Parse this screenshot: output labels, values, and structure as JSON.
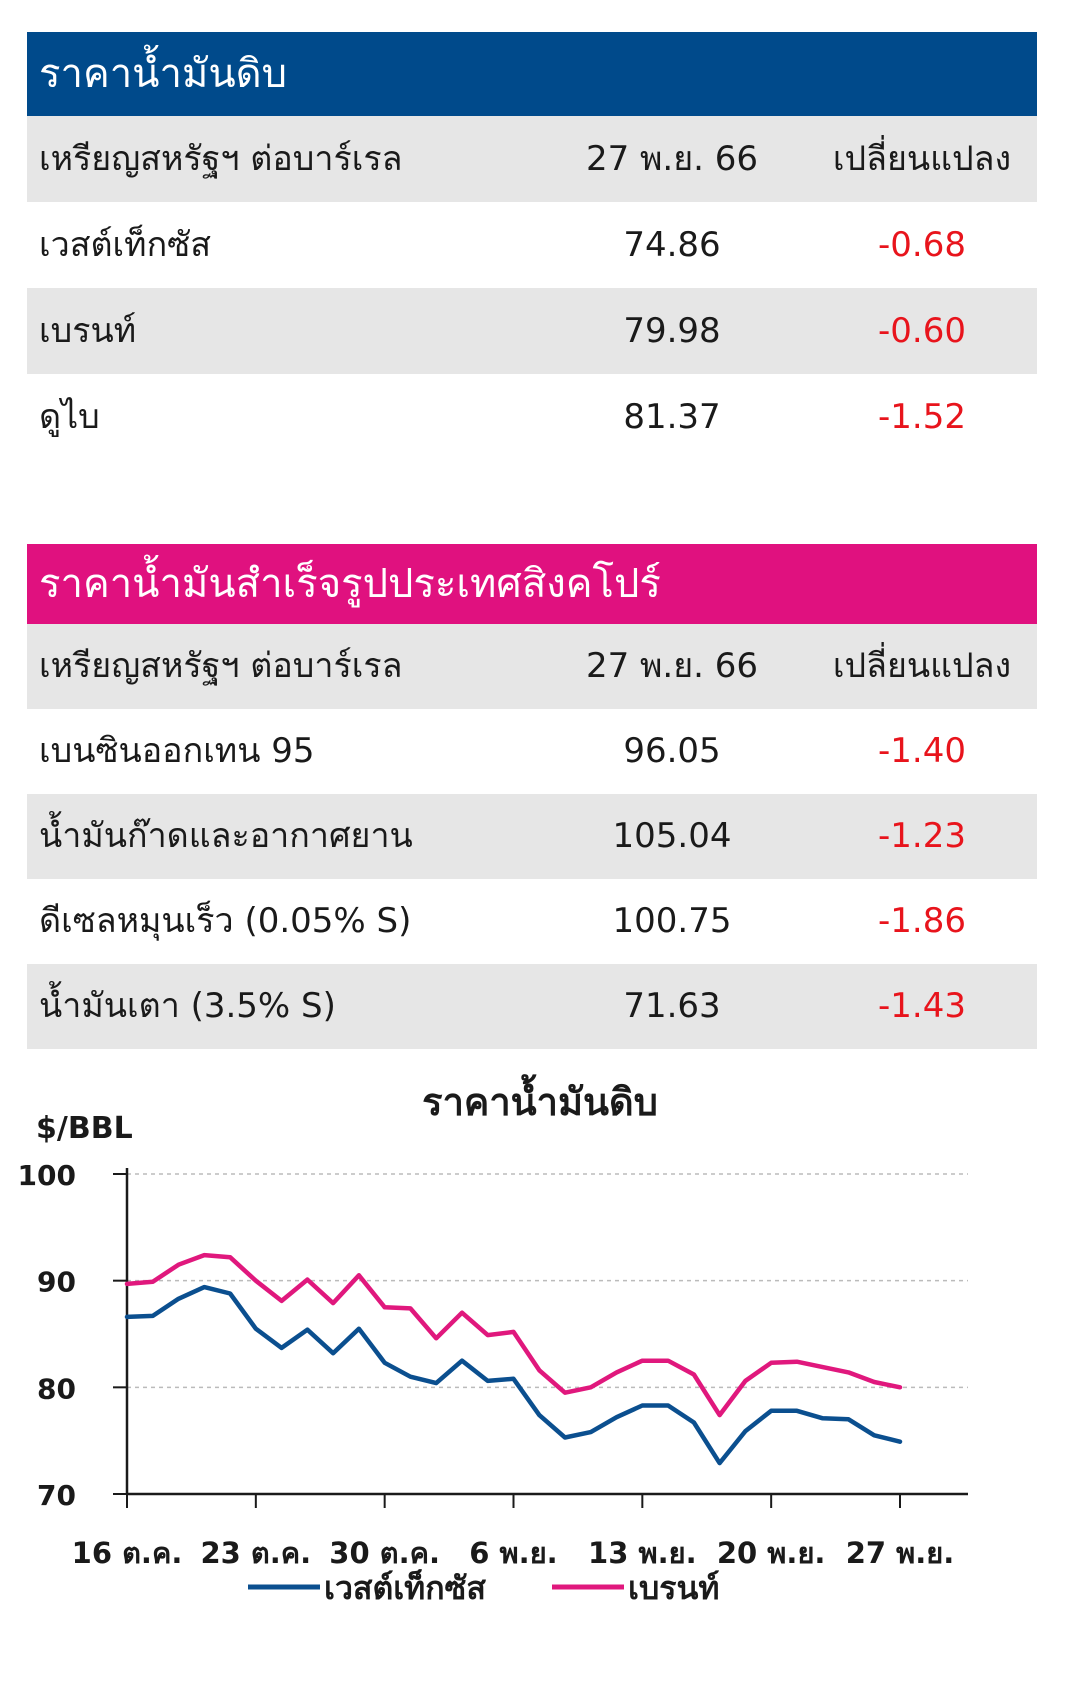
{
  "crude_table": {
    "title": "ราคาน้ำมันดิบ",
    "header": {
      "unit": "เหรียญสหรัฐฯ ต่อบาร์เรล",
      "date": "27 พ.ย. 66",
      "change": "เปลี่ยนแปลง"
    },
    "rows": [
      {
        "name": "เวสต์เท็กซัส",
        "value": "74.86",
        "change": "-0.68"
      },
      {
        "name": "เบรนท์",
        "value": "79.98",
        "change": "-0.60"
      },
      {
        "name": "ดูไบ",
        "value": "81.37",
        "change": "-1.52"
      }
    ]
  },
  "refined_table": {
    "title": "ราคาน้ำมันสำเร็จรูปประเทศสิงคโปร์",
    "header": {
      "unit": "เหรียญสหรัฐฯ ต่อบาร์เรล",
      "date": "27 พ.ย. 66",
      "change": "เปลี่ยนแปลง"
    },
    "rows": [
      {
        "name": "เบนซินออกเทน 95",
        "value": "96.05",
        "change": "-1.40"
      },
      {
        "name": "น้ำมันก๊าดและอากาศยาน",
        "value": "105.04",
        "change": "-1.23"
      },
      {
        "name": "ดีเซลหมุนเร็ว (0.05% S)",
        "value": "100.75",
        "change": "-1.86"
      },
      {
        "name": "น้ำมันเตา (3.5% S)",
        "value": "71.63",
        "change": "-1.43"
      }
    ]
  },
  "colors": {
    "crude_header": "#004a8b",
    "refined_header": "#e0117f",
    "negative": "#e8141c",
    "wti_line": "#0b4f8f",
    "brent_line": "#e0187d"
  },
  "chart_data": {
    "type": "line",
    "title": "ราคาน้ำมันดิบ",
    "ylabel": "$/BBL",
    "ylim": [
      70,
      100
    ],
    "yticks": [
      70,
      80,
      90,
      100
    ],
    "xticks": [
      "16 ต.ค.",
      "23 ต.ค.",
      "30 ต.ค.",
      "6 พ.ย.",
      "13 พ.ย.",
      "20 พ.ย.",
      "27 พ.ย."
    ],
    "x": [
      "16 ต.ค.",
      "17 ต.ค.",
      "18 ต.ค.",
      "19 ต.ค.",
      "20 ต.ค.",
      "23 ต.ค.",
      "24 ต.ค.",
      "25 ต.ค.",
      "26 ต.ค.",
      "27 ต.ค.",
      "30 ต.ค.",
      "31 ต.ค.",
      "1 พ.ย.",
      "2 พ.ย.",
      "3 พ.ย.",
      "6 พ.ย.",
      "7 พ.ย.",
      "8 พ.ย.",
      "9 พ.ย.",
      "10 พ.ย.",
      "13 พ.ย.",
      "14 พ.ย.",
      "15 พ.ย.",
      "16 พ.ย.",
      "17 พ.ย.",
      "20 พ.ย.",
      "21 พ.ย.",
      "22 พ.ย.",
      "23 พ.ย.",
      "24 พ.ย.",
      "27 พ.ย."
    ],
    "series": [
      {
        "name": "เวสต์เท็กซัส",
        "values": [
          86.6,
          86.7,
          88.3,
          89.4,
          88.8,
          85.5,
          83.7,
          85.4,
          83.2,
          85.5,
          82.3,
          81.0,
          80.4,
          82.5,
          80.6,
          80.8,
          77.4,
          75.3,
          75.8,
          77.2,
          78.3,
          78.3,
          76.7,
          72.9,
          75.9,
          77.8,
          77.8,
          77.1,
          77.0,
          75.5,
          74.9
        ]
      },
      {
        "name": "เบรนท์",
        "values": [
          89.7,
          89.9,
          91.5,
          92.4,
          92.2,
          90.0,
          88.1,
          90.1,
          87.9,
          90.5,
          87.5,
          87.4,
          84.6,
          87.0,
          84.9,
          85.2,
          81.6,
          79.5,
          80.0,
          81.4,
          82.5,
          82.5,
          81.2,
          77.4,
          80.6,
          82.3,
          82.4,
          81.9,
          81.4,
          80.5,
          80.0
        ]
      }
    ],
    "legend": "bottom",
    "grid": "horizontal-dashed"
  }
}
